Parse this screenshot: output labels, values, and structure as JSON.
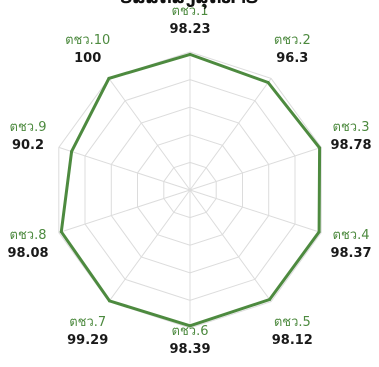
{
  "chart_data": {
    "type": "radar",
    "title": "ບໍລິສັດສົ່ງສຸດທ້າຍ",
    "categories": [
      "ตชว.1",
      "ตชว.2",
      "ตชว.3",
      "ตชว.4",
      "ตชว.5",
      "ตชว.6",
      "ตชว.7",
      "ตชว.8",
      "ตชว.9",
      "ตชว.10"
    ],
    "value_labels": [
      "98.23",
      "96.3",
      "98.78",
      "98.37",
      "98.12",
      "98.39",
      "99.29",
      "98.08",
      "90.2",
      "100"
    ],
    "series": [
      {
        "values": [
          98.23,
          96.3,
          98.78,
          98.37,
          98.12,
          98.39,
          99.29,
          98.08,
          90.2,
          100
        ]
      }
    ],
    "rlim": [
      0,
      100
    ],
    "grid": true,
    "legend": "none",
    "colors": {
      "series": "#4d8a3f",
      "category_label": "#4d8a3f",
      "value_label": "#1a1a1a",
      "grid": "#dcdcdc"
    }
  }
}
